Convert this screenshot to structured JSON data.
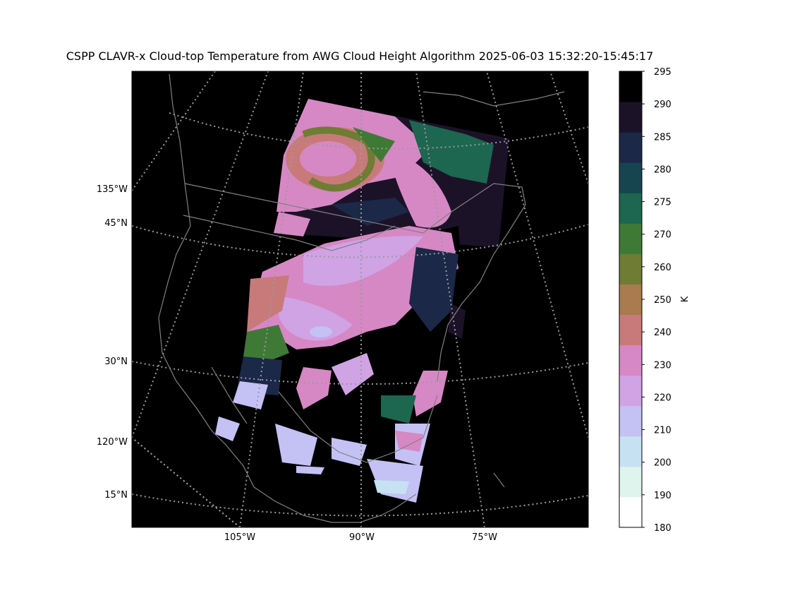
{
  "title": "CSPP CLAVR-x Cloud-top Temperature from AWG Cloud Height Algorithm 2025-06-03 15:32:20-15:45:17",
  "map": {
    "left_labels": [
      "135°W",
      "45°N",
      "30°N",
      "120°W",
      "15°N"
    ],
    "bottom_labels": [
      "105°W",
      "90°W",
      "75°W"
    ],
    "background_color": "#000000",
    "coastline_color": "#808080",
    "graticule_color": "#9a9a9a",
    "graticule_style": "dotted"
  },
  "colorbar": {
    "label": "K",
    "ticks": [
      "180",
      "190",
      "200",
      "210",
      "220",
      "230",
      "240",
      "250",
      "260",
      "270",
      "275",
      "280",
      "285",
      "290",
      "295"
    ],
    "colors": [
      "#ffffff",
      "#dff4ec",
      "#c6e2f2",
      "#c4c1f4",
      "#cfa3e4",
      "#d688c4",
      "#c87a7a",
      "#a97b4e",
      "#6f7c34",
      "#3e7a36",
      "#1d6650",
      "#164550",
      "#1b2848",
      "#1c1228",
      "#000000"
    ]
  }
}
